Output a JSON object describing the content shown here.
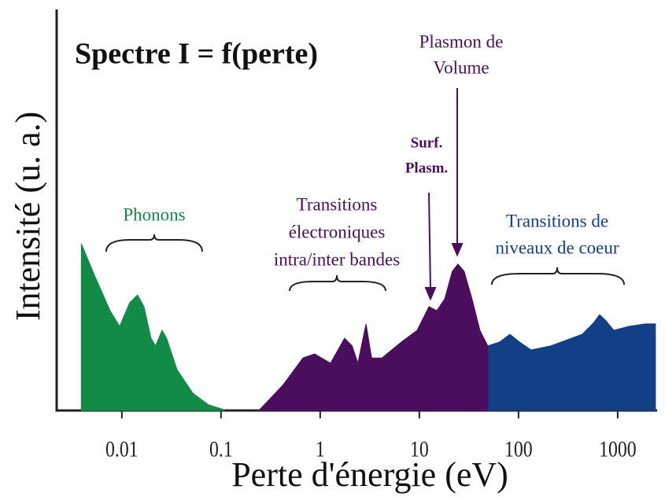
{
  "chart_data": {
    "type": "area",
    "title": "Spectre I = f(perte)",
    "x_label": "Perte d'énergie (eV)",
    "y_label": "Intensité (u. a.)",
    "log_x": true,
    "xlim": [
      0.0022,
      2500
    ],
    "ylim": [
      0,
      100
    ],
    "xticks": [
      0.01,
      0.1,
      1,
      10,
      100,
      1000
    ],
    "series": [
      {
        "color": "#128a48",
        "x": [
          0.0039,
          0.0053,
          0.0076,
          0.0095,
          0.012,
          0.0144,
          0.0167,
          0.0197,
          0.0219,
          0.0254,
          0.0283,
          0.036,
          0.052,
          0.075,
          0.108
        ],
        "values": [
          41.6,
          33.7,
          24.9,
          21,
          26.9,
          28.8,
          25.9,
          18,
          16.1,
          20,
          18,
          10.2,
          4.3,
          1.4,
          0.2
        ]
      },
      {
        "color": "#4b0e5f",
        "x": [
          0.245,
          0.42,
          0.67,
          0.88,
          1.27,
          1.76,
          2.1,
          2.4,
          2.9,
          3.3,
          4.2,
          6.6,
          9.5,
          12.5,
          15,
          18,
          21.5,
          24.5,
          28.3,
          34,
          40.8,
          49
        ],
        "values": [
          0.2,
          6.3,
          13.1,
          14.1,
          11.8,
          18,
          16.1,
          11.8,
          21.6,
          13.1,
          13.1,
          17.1,
          20,
          25.9,
          24.9,
          27.8,
          34.7,
          36.5,
          34.7,
          27.8,
          20,
          16.1
        ]
      },
      {
        "color": "#133f87",
        "x": [
          49,
          64.5,
          82,
          102,
          134,
          211,
          439,
          578,
          657,
          760,
          913,
          1315,
          1897,
          2404
        ],
        "values": [
          16.1,
          17.1,
          19,
          17.1,
          15.1,
          16.1,
          19,
          22,
          23.9,
          22.4,
          20,
          21,
          21.6,
          21.6
        ]
      }
    ],
    "annotations": [
      {
        "lines": [
          "Phonons"
        ],
        "color": "#128a48"
      },
      {
        "lines": [
          "Transitions",
          "électroniques",
          "intra/inter bandes"
        ],
        "color": "#4b0e5f"
      },
      {
        "lines": [
          "Surf.",
          "Plasm."
        ],
        "color": "#4b0e5f"
      },
      {
        "lines": [
          "Plasmon de",
          "Volume"
        ],
        "color": "#4b0e5f"
      },
      {
        "lines": [
          "Transitions de",
          "niveaux de coeur"
        ],
        "color": "#133f87"
      }
    ]
  }
}
